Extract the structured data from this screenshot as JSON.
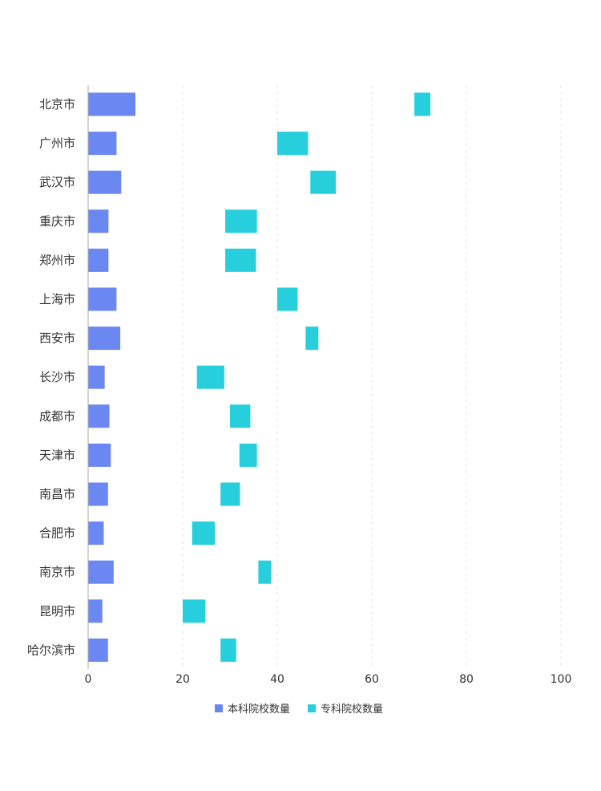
{
  "chart_data": {
    "type": "bar",
    "orientation": "horizontal",
    "stacked_ranges": true,
    "categories": [
      "北京市",
      "广州市",
      "武汉市",
      "重庆市",
      "郑州市",
      "上海市",
      "西安市",
      "长沙市",
      "成都市",
      "天津市",
      "南昌市",
      "合肥市",
      "南京市",
      "昆明市",
      "哈尔滨市"
    ],
    "series": [
      {
        "name": "本科院校数量",
        "color": "#6b87f1",
        "start": [
          0,
          0,
          0,
          0,
          0,
          0,
          0,
          0,
          0,
          0,
          0,
          0,
          0,
          0,
          0
        ],
        "end": [
          10,
          6,
          7,
          4.3,
          4.3,
          6,
          6.8,
          3.5,
          4.5,
          4.8,
          4.2,
          3.3,
          5.4,
          3,
          4.2
        ]
      },
      {
        "name": "专科院校数量",
        "color": "#27cfdc",
        "start": [
          69,
          40,
          47,
          29,
          29,
          40,
          46,
          23,
          30,
          32,
          28,
          22,
          36,
          20,
          28
        ],
        "end": [
          72.4,
          46.5,
          52.4,
          35.7,
          35.5,
          44.3,
          48.7,
          28.8,
          34.3,
          35.7,
          32.1,
          26.8,
          38.7,
          24.8,
          31.3
        ]
      }
    ],
    "x_ticks": [
      "0",
      "20",
      "40",
      "60",
      "80",
      "100"
    ],
    "xlim": [
      0,
      100
    ],
    "grid": true,
    "legend_position": "bottom"
  }
}
